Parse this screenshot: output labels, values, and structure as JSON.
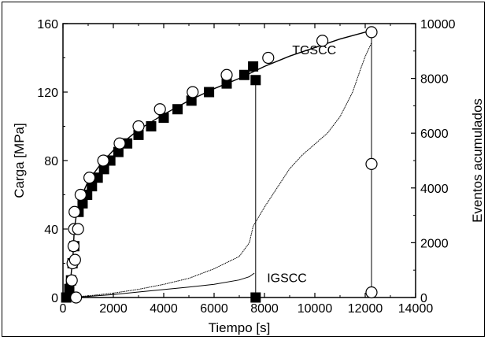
{
  "chart_data": {
    "type": "scatter",
    "xlabel": "Tiempo [s]",
    "ylabel": "Carga [MPa]",
    "y2label": "Eventos acumulados",
    "xlim": [
      0,
      14000
    ],
    "ylim": [
      0,
      160
    ],
    "y2lim": [
      0,
      10000
    ],
    "x_ticks": [
      "0",
      "2000",
      "4000",
      "6000",
      "8000",
      "10000",
      "12000",
      "14000"
    ],
    "y_ticks": [
      "0",
      "40",
      "80",
      "120",
      "160"
    ],
    "y2_ticks": [
      "0",
      "2000",
      "4000",
      "6000",
      "8000",
      "10000"
    ],
    "annotations": [
      {
        "text": "TGSCC",
        "x": 9100,
        "y": 142
      },
      {
        "text": "IGSCC",
        "x": 8100,
        "y": 9
      }
    ],
    "series": [
      {
        "marker": "filled-square",
        "axis": "left",
        "color": "#000000",
        "x": [
          130,
          250,
          320,
          380,
          450,
          520,
          620,
          780,
          960,
          1150,
          1380,
          1630,
          1880,
          2200,
          2550,
          3000,
          3500,
          4000,
          4550,
          5100,
          5800,
          6500,
          7200,
          7550,
          7650,
          7650
        ],
        "y": [
          0,
          5,
          10,
          20,
          30,
          40,
          50,
          55,
          60,
          65,
          70,
          75,
          80,
          85,
          90,
          95,
          100,
          105,
          110,
          115,
          120,
          125,
          130,
          135,
          127,
          0
        ]
      },
      {
        "marker": "open-circle",
        "axis": "left",
        "color": "#000000",
        "x": [
          350,
          380,
          420,
          440,
          460,
          480,
          520,
          600,
          700,
          1050,
          1600,
          2250,
          3000,
          3850,
          5150,
          6500,
          8150,
          10300,
          12250,
          12250,
          12250
        ],
        "y": [
          10,
          20,
          30,
          40,
          50,
          22,
          0,
          40,
          60,
          70,
          80,
          90,
          100,
          110,
          120,
          130,
          140,
          150,
          155,
          78,
          3
        ]
      },
      {
        "line": "load-curve",
        "axis": "left",
        "color": "#000000",
        "x": [
          150,
          300,
          400,
          450,
          550,
          700,
          1000,
          1500,
          2000,
          3000,
          4000,
          5000,
          6000,
          7000,
          8000,
          9000,
          10000,
          11000,
          12250
        ],
        "y": [
          0,
          10,
          25,
          40,
          50,
          58,
          68,
          78,
          86,
          98,
          107,
          115,
          122,
          128,
          135,
          141,
          146,
          151,
          156
        ]
      },
      {
        "line": "events-tgscc",
        "axis": "right",
        "color": "#000000",
        "x": [
          0,
          1000,
          2000,
          3000,
          4000,
          5000,
          6000,
          7000,
          7400,
          7550,
          8000,
          8500,
          9000,
          9500,
          10000,
          10500,
          11000,
          11500,
          11800,
          12000,
          12250
        ],
        "y": [
          0,
          60,
          160,
          300,
          480,
          700,
          1050,
          1500,
          2000,
          2600,
          3300,
          4000,
          4700,
          5200,
          5600,
          6000,
          6600,
          7500,
          8300,
          8800,
          9300
        ]
      },
      {
        "line": "events-igscc",
        "axis": "right",
        "color": "#000000",
        "x": [
          0,
          1000,
          2000,
          3000,
          4000,
          5000,
          6000,
          7000,
          7400,
          7600
        ],
        "y": [
          0,
          40,
          110,
          200,
          290,
          380,
          480,
          640,
          760,
          890
        ]
      }
    ],
    "vertical_lines": [
      {
        "x": 7650,
        "ymax_left": 127
      },
      {
        "x": 12250,
        "ymax_left": 155
      }
    ]
  }
}
